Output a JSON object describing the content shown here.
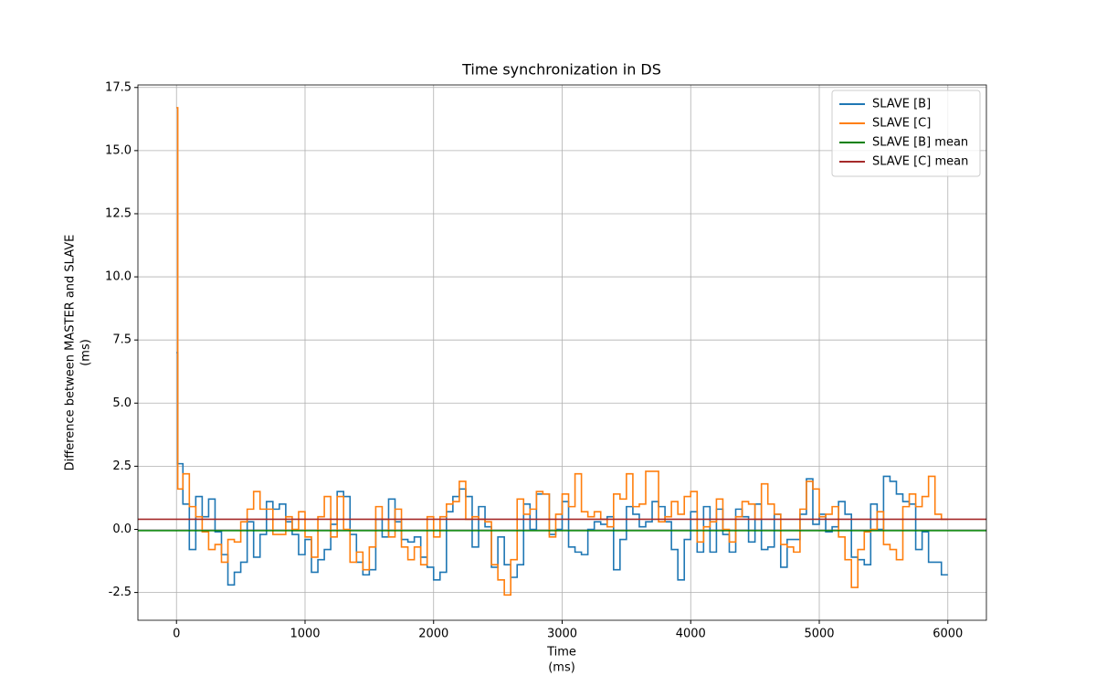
{
  "chart_data": {
    "type": "step",
    "title": "Time synchronization in DS",
    "xlabel": [
      "Time",
      "(ms)"
    ],
    "ylabel": [
      "Difference between MASTER and SLAVE",
      "(ms)"
    ],
    "xlim": [
      -300,
      6300
    ],
    "ylim": [
      -3.6,
      17.6
    ],
    "xticks": [
      0,
      1000,
      2000,
      3000,
      4000,
      5000,
      6000
    ],
    "yticks": [
      -2.5,
      {
        "value": 0,
        "label": "0.0"
      },
      2.5,
      {
        "value": 5,
        "label": "5.0"
      },
      7.5,
      {
        "value": 10,
        "label": "10.0"
      },
      12.5,
      {
        "value": 15,
        "label": "15.0"
      },
      17.5
    ],
    "grid": true,
    "legend": "upper right",
    "x": [
      0,
      10,
      50,
      100,
      150,
      200,
      250,
      300,
      350,
      400,
      450,
      500,
      550,
      600,
      650,
      700,
      750,
      800,
      850,
      900,
      950,
      1000,
      1050,
      1100,
      1150,
      1200,
      1250,
      1300,
      1350,
      1400,
      1450,
      1500,
      1550,
      1600,
      1650,
      1700,
      1750,
      1800,
      1850,
      1900,
      1950,
      2000,
      2050,
      2100,
      2150,
      2200,
      2250,
      2300,
      2350,
      2400,
      2450,
      2500,
      2550,
      2600,
      2650,
      2700,
      2750,
      2800,
      2850,
      2900,
      2950,
      3000,
      3050,
      3100,
      3150,
      3200,
      3250,
      3300,
      3350,
      3400,
      3450,
      3500,
      3550,
      3600,
      3650,
      3700,
      3750,
      3800,
      3850,
      3900,
      3950,
      4000,
      4050,
      4100,
      4150,
      4200,
      4250,
      4300,
      4350,
      4400,
      4450,
      4500,
      4550,
      4600,
      4650,
      4700,
      4750,
      4800,
      4850,
      4900,
      4950,
      5000,
      5050,
      5100,
      5150,
      5200,
      5250,
      5300,
      5350,
      5400,
      5450,
      5500,
      5550,
      5600,
      5650,
      5700,
      5750,
      5800,
      5850,
      5900,
      5950,
      6000
    ],
    "series": [
      {
        "name": "SLAVE [B]",
        "color": "#1f77b4",
        "values": [
          7.0,
          2.6,
          1.0,
          -0.8,
          1.3,
          0.5,
          1.2,
          -0.1,
          -1.0,
          -2.2,
          -1.7,
          -1.3,
          0.3,
          -1.1,
          -0.2,
          1.1,
          0.8,
          1.0,
          0.3,
          -0.2,
          -1.0,
          -0.4,
          -1.7,
          -1.2,
          -0.8,
          0.2,
          1.5,
          1.3,
          -0.2,
          -1.3,
          -1.8,
          -1.6,
          0.4,
          -0.3,
          1.2,
          0.3,
          -0.4,
          -0.5,
          -0.3,
          -1.1,
          -1.5,
          -2.0,
          -1.7,
          0.7,
          1.3,
          1.6,
          1.3,
          -0.7,
          0.9,
          0.1,
          -1.5,
          -0.3,
          -1.4,
          -1.9,
          -1.4,
          1.0,
          0.0,
          1.4,
          1.4,
          -0.2,
          0.0,
          1.1,
          -0.7,
          -0.9,
          -1.0,
          0.0,
          0.3,
          0.2,
          0.5,
          -1.6,
          -0.4,
          0.9,
          0.6,
          0.1,
          0.3,
          1.1,
          0.9,
          0.3,
          -0.8,
          -2.0,
          -0.4,
          0.7,
          -0.9,
          0.9,
          -0.9,
          0.8,
          -0.2,
          -0.9,
          0.8,
          0.5,
          -0.5,
          1.0,
          -0.8,
          -0.7,
          0.6,
          -1.5,
          -0.4,
          -0.4,
          0.6,
          2.0,
          0.2,
          0.6,
          -0.1,
          0.1,
          1.1,
          0.6,
          -1.1,
          -1.2,
          -1.4,
          1.0,
          0.0,
          2.1,
          1.9,
          1.4,
          1.1,
          1.0,
          -0.8,
          -0.1,
          -1.3,
          -1.3,
          -1.8,
          -1.8
        ]
      },
      {
        "name": "SLAVE [C]",
        "color": "#ff7f0e",
        "values": [
          16.7,
          1.6,
          2.2,
          0.9,
          0.5,
          -0.1,
          -0.8,
          -0.6,
          -1.3,
          -0.4,
          -0.5,
          0.3,
          0.8,
          1.5,
          0.8,
          0.8,
          -0.2,
          -0.2,
          0.5,
          0.0,
          0.7,
          -0.3,
          -1.1,
          0.5,
          1.3,
          -0.3,
          1.3,
          0.0,
          -1.3,
          -0.9,
          -1.6,
          -0.7,
          0.9,
          0.4,
          -0.3,
          0.8,
          -0.7,
          -1.2,
          -0.7,
          -1.4,
          0.5,
          -0.3,
          0.5,
          1.0,
          1.1,
          1.9,
          0.4,
          0.5,
          0.4,
          0.3,
          -1.4,
          -2.0,
          -2.6,
          -1.2,
          1.2,
          0.6,
          0.8,
          1.5,
          1.4,
          -0.3,
          0.6,
          1.4,
          0.9,
          2.2,
          0.7,
          0.5,
          0.7,
          0.4,
          0.1,
          1.4,
          1.2,
          2.2,
          0.9,
          1.0,
          2.3,
          2.3,
          0.3,
          0.5,
          1.1,
          0.6,
          1.3,
          1.5,
          -0.5,
          0.1,
          0.3,
          1.2,
          0.0,
          -0.5,
          0.5,
          1.1,
          1.0,
          0.4,
          1.8,
          1.0,
          0.6,
          -0.6,
          -0.7,
          -0.9,
          0.8,
          1.9,
          1.6,
          0.5,
          0.6,
          0.9,
          -0.3,
          -1.2,
          -2.3,
          -0.8,
          -0.1,
          0.0,
          0.7,
          -0.6,
          -0.8,
          -1.2,
          0.9,
          1.4,
          0.9,
          1.3,
          2.1,
          0.6,
          0.4,
          0.4
        ]
      }
    ],
    "mean_lines": [
      {
        "name": "SLAVE [B] mean",
        "color": "#008000",
        "value": -0.05
      },
      {
        "name": "SLAVE [C] mean",
        "color": "#a52a2a",
        "value": 0.4
      }
    ]
  }
}
